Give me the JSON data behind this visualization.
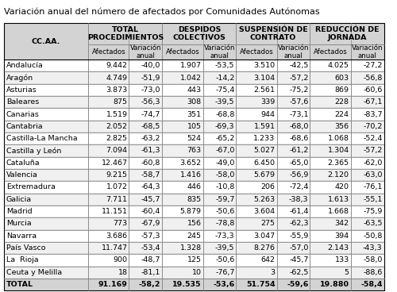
{
  "title": "Variación anual del número de afectados por Comunidades Autónomas",
  "group_names": [
    "TOTAL\nPROCEDIMIENTOS",
    "DESPIDOS\nCOLECTIVOS",
    "SUSPENSIÓN DE\nCONTRATO",
    "REDUCCIÓN DE\nJORNADA"
  ],
  "rows": [
    [
      "Andalucía",
      "9.442",
      "-40,0",
      "1.907",
      "-53,5",
      "3.510",
      "-42,5",
      "4.025",
      "-27,2"
    ],
    [
      "Aragón",
      "4.749",
      "-51,9",
      "1.042",
      "-14,2",
      "3.104",
      "-57,2",
      "603",
      "-56,8"
    ],
    [
      "Asturias",
      "3.873",
      "-73,0",
      "443",
      "-75,4",
      "2.561",
      "-75,2",
      "869",
      "-60,6"
    ],
    [
      "Baleares",
      "875",
      "-56,3",
      "308",
      "-39,5",
      "339",
      "-57,6",
      "228",
      "-67,1"
    ],
    [
      "Canarias",
      "1.519",
      "-74,7",
      "351",
      "-68,8",
      "944",
      "-73,1",
      "224",
      "-83,7"
    ],
    [
      "Cantabria",
      "2.052",
      "-68,5",
      "105",
      "-69,3",
      "1.591",
      "-68,0",
      "356",
      "-70,2"
    ],
    [
      "Castilla-La Mancha",
      "2.825",
      "-63,2",
      "524",
      "-65,2",
      "1.233",
      "-68,6",
      "1.068",
      "-52,4"
    ],
    [
      "Castilla y León",
      "7.094",
      "-61,3",
      "763",
      "-67,0",
      "5.027",
      "-61,2",
      "1.304",
      "-57,2"
    ],
    [
      "Cataluña",
      "12.467",
      "-60,8",
      "3.652",
      "-49,0",
      "6.450",
      "-65,0",
      "2.365",
      "-62,0"
    ],
    [
      "Valencia",
      "9.215",
      "-58,7",
      "1.416",
      "-58,0",
      "5.679",
      "-56,9",
      "2.120",
      "-63,0"
    ],
    [
      "Extremadura",
      "1.072",
      "-64,3",
      "446",
      "-10,8",
      "206",
      "-72,4",
      "420",
      "-76,1"
    ],
    [
      "Galicia",
      "7.711",
      "-45,7",
      "835",
      "-59,7",
      "5.263",
      "-38,3",
      "1.613",
      "-55,1"
    ],
    [
      "Madrid",
      "11.151",
      "-60,4",
      "5.879",
      "-50,6",
      "3.604",
      "-61,4",
      "1.668",
      "-75,9"
    ],
    [
      "Murcia",
      "773",
      "-67,9",
      "156",
      "-78,8",
      "275",
      "-62,3",
      "342",
      "-63,5"
    ],
    [
      "Navarra",
      "3.686",
      "-57,3",
      "245",
      "-73,3",
      "3.047",
      "-55,9",
      "394",
      "-50,8"
    ],
    [
      "País Vasco",
      "11.747",
      "-53,4",
      "1.328",
      "-39,5",
      "8.276",
      "-57,0",
      "2.143",
      "-43,3"
    ],
    [
      "La  Rioja",
      "900",
      "-48,7",
      "125",
      "-50,6",
      "642",
      "-45,7",
      "133",
      "-58,0"
    ],
    [
      "Ceuta y Melilla",
      "18",
      "-81,1",
      "10",
      "-76,7",
      "3",
      "-62,5",
      "5",
      "-88,6"
    ],
    [
      "TOTAL",
      "91.169",
      "-58,2",
      "19.535",
      "-53,6",
      "51.754",
      "-59,6",
      "19.880",
      "-58,4"
    ]
  ],
  "header_bg": "#d3d3d3",
  "row_alt_bg": "#f0f0f0",
  "row_bg": "#ffffff",
  "total_bg": "#d3d3d3",
  "title_fontsize": 8.0,
  "header_fontsize": 6.8,
  "subheader_fontsize": 6.2,
  "cell_fontsize": 6.8
}
